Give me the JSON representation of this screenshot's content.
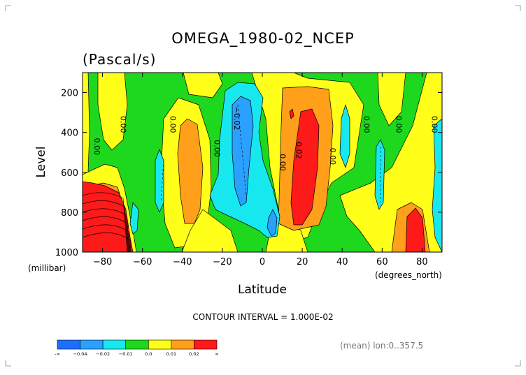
{
  "chart_data": {
    "type": "contour",
    "title": "OMEGA_1980-02_NCEP",
    "units": "(Pascal/s)",
    "xlabel": "Latitude",
    "ylabel": "Level",
    "xunit_label": "(degrees_north)",
    "yunit_label": "(millibar)",
    "xlim": [
      -90,
      90
    ],
    "ylim": [
      1000,
      100
    ],
    "x_ticks": [
      -80,
      -60,
      -40,
      -20,
      0,
      20,
      40,
      60,
      80
    ],
    "x_tick_labels": [
      "−80",
      "−60",
      "−40",
      "−20",
      "0",
      "20",
      "40",
      "60",
      "80"
    ],
    "y_ticks": [
      200,
      400,
      600,
      800,
      1000
    ],
    "y_tick_labels": [
      "200",
      "400",
      "600",
      "800",
      "1000"
    ],
    "contour_interval_label": "CONTOUR INTERVAL = 1.000E-02",
    "note": "(mean) lon:0..357.5",
    "colorbar": {
      "colors": [
        "#1f6fff",
        "#2aa0ff",
        "#17e8f0",
        "#1ed81e",
        "#ffff1a",
        "#ff9f1a",
        "#ff1a1a"
      ],
      "labels": [
        "-∞",
        "−0.04",
        "−0.02",
        "−0.01",
        "0.0",
        "0.01",
        "0.02",
        "∞"
      ]
    },
    "level_colors": {
      "neg3": "#1f6fff",
      "neg2": "#2aa0ff",
      "neg1": "#17e8f0",
      "zero": "#1ed81e",
      "pos1": "#ffff1a",
      "pos2": "#ff9f1a",
      "pos3": "#ff1a1a"
    },
    "contour_labels": [
      {
        "text": "0.00",
        "lat": -84,
        "p": 470
      },
      {
        "text": "0.00",
        "lat": -71,
        "p": 360
      },
      {
        "text": "0.00",
        "lat": -46,
        "p": 360
      },
      {
        "text": "0.00",
        "lat": -24,
        "p": 480
      },
      {
        "text": "−0.02",
        "lat": -14,
        "p": 330
      },
      {
        "text": "0.00",
        "lat": 9,
        "p": 550
      },
      {
        "text": "0.02",
        "lat": 17,
        "p": 490
      },
      {
        "text": "0.00",
        "lat": 34,
        "p": 520
      },
      {
        "text": "0.00",
        "lat": 51,
        "p": 360
      },
      {
        "text": "0.00",
        "lat": 67,
        "p": 360
      },
      {
        "text": "0.00",
        "lat": 85,
        "p": 360
      }
    ]
  }
}
